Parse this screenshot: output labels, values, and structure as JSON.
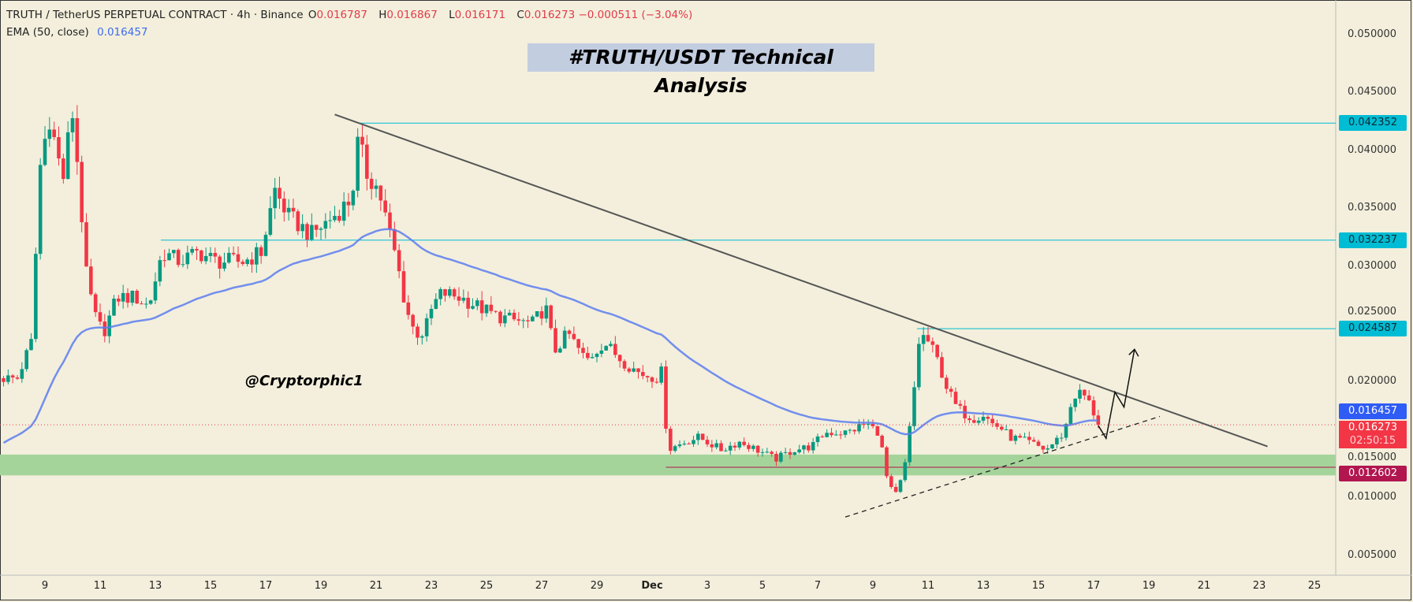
{
  "header": {
    "symbol": "TRUTH / TetherUS PERPETUAL CONTRACT · 4h · Binance",
    "open_label": "O",
    "open": "0.016787",
    "high_label": "H",
    "high": "0.016867",
    "low_label": "L",
    "low": "0.016171",
    "close_label": "C",
    "close": "0.016273 −0.000511 (−3.04%)",
    "indicator": "EMA (50, close)",
    "indicator_value": "0.016457"
  },
  "title": "#TRUTH/USDT Technical Analysis",
  "watermark": "@Cryptorphic1",
  "colors": {
    "bg": "#f3efdc",
    "up": "#089981",
    "down": "#f23645",
    "ema": "#5b7cf0",
    "level": "#00bcd4",
    "zone": "#a5d49b",
    "support": "#b2164f",
    "trend": "#555555"
  },
  "chart_data": {
    "type": "candlestick",
    "title": "#TRUTH/USDT Technical Analysis",
    "timeframe": "4h",
    "ylim": [
      0.0028,
      0.0535
    ],
    "y_ticks": [
      "0.050000",
      "0.045000",
      "0.040000",
      "0.035000",
      "0.030000",
      "0.025000",
      "0.020000",
      "0.015000",
      "0.010000",
      "0.005000"
    ],
    "x_ticks": [
      {
        "day": 9,
        "label": "9"
      },
      {
        "day": 11,
        "label": "11"
      },
      {
        "day": 13,
        "label": "13"
      },
      {
        "day": 15,
        "label": "15"
      },
      {
        "day": 17,
        "label": "17"
      },
      {
        "day": 19,
        "label": "19"
      },
      {
        "day": 21,
        "label": "21"
      },
      {
        "day": 23,
        "label": "23"
      },
      {
        "day": 25,
        "label": "25"
      },
      {
        "day": 27,
        "label": "27"
      },
      {
        "day": 29,
        "label": "29"
      },
      {
        "day": 31,
        "label": "Dec"
      },
      {
        "day": 33,
        "label": "3"
      },
      {
        "day": 35,
        "label": "5"
      },
      {
        "day": 37,
        "label": "7"
      },
      {
        "day": 39,
        "label": "9"
      },
      {
        "day": 41,
        "label": "11"
      },
      {
        "day": 43,
        "label": "13"
      },
      {
        "day": 45,
        "label": "15"
      },
      {
        "day": 47,
        "label": "17"
      },
      {
        "day": 49,
        "label": "19"
      },
      {
        "day": 51,
        "label": "21"
      },
      {
        "day": 53,
        "label": "23"
      },
      {
        "day": 55,
        "label": "25"
      }
    ],
    "price_path_day_price": [
      [
        7.5,
        0.0203
      ],
      [
        8.0,
        0.0203
      ],
      [
        8.5,
        0.0234
      ],
      [
        8.84,
        0.039
      ],
      [
        9.16,
        0.0429
      ],
      [
        9.65,
        0.0374
      ],
      [
        9.98,
        0.0436
      ],
      [
        10.24,
        0.0374
      ],
      [
        10.47,
        0.0296
      ],
      [
        10.8,
        0.0257
      ],
      [
        11.12,
        0.0242
      ],
      [
        11.61,
        0.0273
      ],
      [
        12.27,
        0.0273
      ],
      [
        12.76,
        0.0265
      ],
      [
        13.25,
        0.0312
      ],
      [
        13.9,
        0.0304
      ],
      [
        14.56,
        0.0312
      ],
      [
        15.21,
        0.0304
      ],
      [
        16.19,
        0.0304
      ],
      [
        16.84,
        0.0312
      ],
      [
        17.33,
        0.0366
      ],
      [
        17.82,
        0.0343
      ],
      [
        18.64,
        0.0327
      ],
      [
        19.46,
        0.0343
      ],
      [
        20.11,
        0.0358
      ],
      [
        20.37,
        0.0413
      ],
      [
        20.6,
        0.0382
      ],
      [
        21.09,
        0.0366
      ],
      [
        21.42,
        0.0335
      ],
      [
        21.75,
        0.0304
      ],
      [
        22.07,
        0.0265
      ],
      [
        22.4,
        0.0242
      ],
      [
        22.73,
        0.0242
      ],
      [
        23.05,
        0.0265
      ],
      [
        23.38,
        0.0277
      ],
      [
        24.03,
        0.0273
      ],
      [
        24.69,
        0.0265
      ],
      [
        25.34,
        0.0257
      ],
      [
        26.0,
        0.0253
      ],
      [
        26.65,
        0.025
      ],
      [
        27.14,
        0.0265
      ],
      [
        27.46,
        0.0226
      ],
      [
        27.95,
        0.0242
      ],
      [
        28.61,
        0.0218
      ],
      [
        29.26,
        0.0234
      ],
      [
        29.92,
        0.0218
      ],
      [
        30.57,
        0.0207
      ],
      [
        31.22,
        0.0203
      ],
      [
        31.39,
        0.0211
      ],
      [
        31.55,
        0.0141
      ],
      [
        32.2,
        0.0148
      ],
      [
        32.69,
        0.0152
      ],
      [
        33.51,
        0.0141
      ],
      [
        34.16,
        0.0148
      ],
      [
        34.82,
        0.0141
      ],
      [
        35.47,
        0.0133
      ],
      [
        36.12,
        0.0141
      ],
      [
        36.78,
        0.0144
      ],
      [
        37.27,
        0.0156
      ],
      [
        38.08,
        0.0156
      ],
      [
        38.74,
        0.0164
      ],
      [
        39.23,
        0.0156
      ],
      [
        39.56,
        0.0109
      ],
      [
        39.88,
        0.0102
      ],
      [
        40.21,
        0.0133
      ],
      [
        40.54,
        0.0203
      ],
      [
        40.7,
        0.0242
      ],
      [
        41.03,
        0.0234
      ],
      [
        41.35,
        0.0218
      ],
      [
        41.68,
        0.0195
      ],
      [
        42.01,
        0.0179
      ],
      [
        42.33,
        0.0172
      ],
      [
        42.66,
        0.0168
      ],
      [
        42.99,
        0.0172
      ],
      [
        43.31,
        0.0164
      ],
      [
        43.64,
        0.016
      ],
      [
        43.97,
        0.0152
      ],
      [
        44.62,
        0.0148
      ],
      [
        45.27,
        0.0141
      ],
      [
        45.6,
        0.0148
      ],
      [
        45.93,
        0.0156
      ],
      [
        46.25,
        0.0187
      ],
      [
        46.58,
        0.0191
      ],
      [
        46.9,
        0.0179
      ],
      [
        47.17,
        0.016273
      ]
    ],
    "ema_period": 50,
    "levels": [
      {
        "price": 0.042352,
        "label": "0.042352",
        "from_day": 20.4
      },
      {
        "price": 0.032237,
        "label": "0.032237",
        "from_day": 13.2
      },
      {
        "price": 0.024587,
        "label": "0.024587",
        "from_day": 40.6
      }
    ],
    "support_line": {
      "price": 0.012602,
      "label": "0.012602",
      "from_day": 31.5
    },
    "demand_zone": [
      0.0119,
      0.0137
    ],
    "ema_last": {
      "label": "0.016457"
    },
    "last_price": {
      "label": "0.016273",
      "countdown": "02:50:15"
    },
    "descending_trendline": [
      [
        19.5,
        0.0431
      ],
      [
        53.3,
        0.0144
      ]
    ],
    "ascending_trendline": [
      [
        38.0,
        0.0083
      ],
      [
        49.4,
        0.017
      ]
    ],
    "projection_path": [
      [
        47.17,
        0.0162
      ],
      [
        47.45,
        0.0151
      ],
      [
        47.77,
        0.0191
      ],
      [
        48.1,
        0.0178
      ],
      [
        48.48,
        0.0228
      ]
    ]
  }
}
